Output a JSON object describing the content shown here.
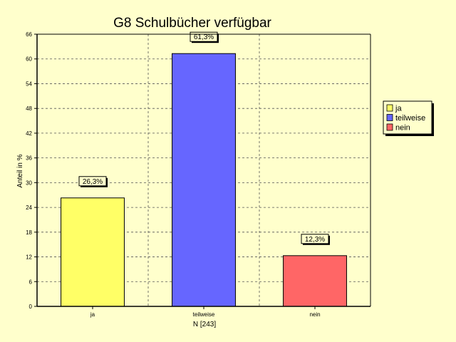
{
  "chart_data": {
    "type": "bar",
    "title": "G8 Schulbücher verfügbar",
    "xlabel": "N [243]",
    "ylabel": "Anteil in %",
    "categories": [
      "ja",
      "teilweise",
      "nein"
    ],
    "values": [
      26.3,
      61.3,
      12.3
    ],
    "data_labels": [
      "26,3%",
      "61,3%",
      "12,3%"
    ],
    "colors": [
      "#FFFF66",
      "#6666FF",
      "#FF6666"
    ],
    "ylim": [
      0,
      66
    ],
    "yticks": [
      0,
      6,
      12,
      18,
      24,
      30,
      36,
      42,
      48,
      54,
      60,
      66
    ],
    "grid": true,
    "legend": {
      "position": "right",
      "entries": [
        "ja",
        "teilweise",
        "nein"
      ]
    }
  }
}
